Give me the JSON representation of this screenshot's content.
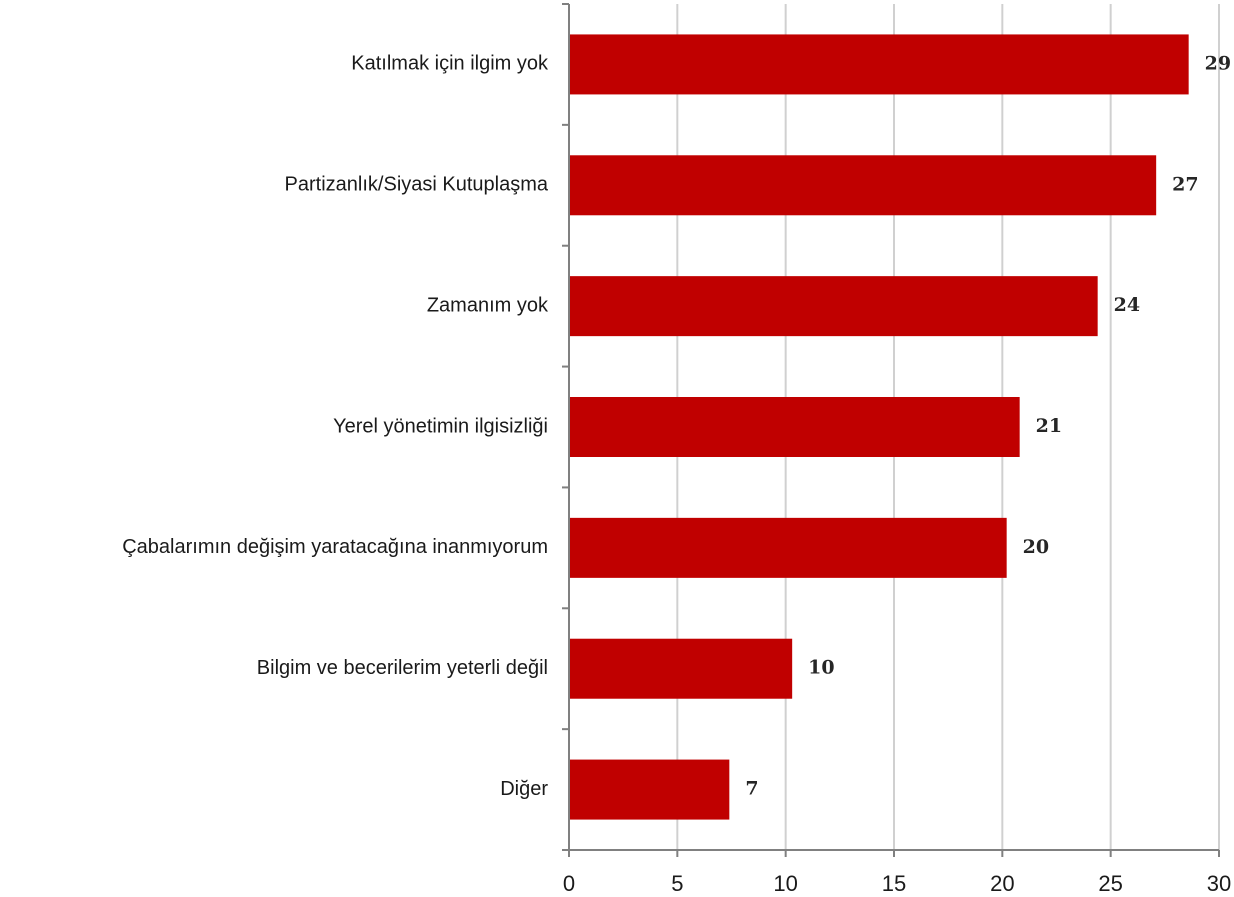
{
  "chart_data": {
    "type": "bar",
    "orientation": "horizontal",
    "categories": [
      "Katılmak için ilgim yok",
      "Partizanlık/Siyasi Kutuplaşma",
      "Zamanım yok",
      "Yerel yönetimin ilgisizliği",
      "Çabalarımın değişim yaratacağına inanmıyorum",
      "Bilgim ve becerilerim yeterli değil",
      "Diğer"
    ],
    "values": [
      28.6,
      27.1,
      24.4,
      20.8,
      20.2,
      10.3,
      7.4
    ],
    "value_labels": [
      "29",
      "27",
      "24",
      "21",
      "20",
      "10",
      "7"
    ],
    "color": "#c00000",
    "xlim": [
      0,
      30
    ],
    "xticks": [
      0,
      5,
      10,
      15,
      20,
      25,
      30
    ],
    "grid": true
  }
}
